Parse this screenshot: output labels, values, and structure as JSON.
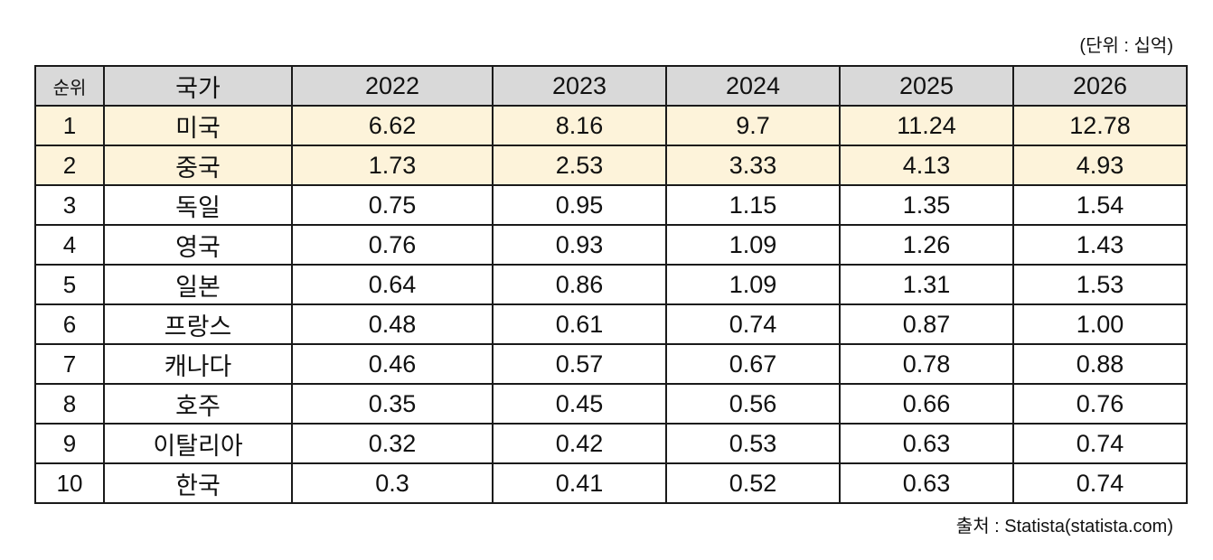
{
  "unit_note": "(단위 : 십억)",
  "source_note": "출처 : Statista(statista.com)",
  "colors": {
    "header_bg": "#d9d9d9",
    "highlight_bg": "#fdf3da",
    "border": "#1a1a1a"
  },
  "chart_data": {
    "type": "table",
    "columns": [
      "순위",
      "국가",
      "2022",
      "2023",
      "2024",
      "2025",
      "2026"
    ],
    "highlighted_ranks": [
      "1",
      "2"
    ],
    "rows": [
      {
        "rank": "1",
        "country": "미국",
        "values": [
          "6.62",
          "8.16",
          "9.7",
          "11.24",
          "12.78"
        ]
      },
      {
        "rank": "2",
        "country": "중국",
        "values": [
          "1.73",
          "2.53",
          "3.33",
          "4.13",
          "4.93"
        ]
      },
      {
        "rank": "3",
        "country": "독일",
        "values": [
          "0.75",
          "0.95",
          "1.15",
          "1.35",
          "1.54"
        ]
      },
      {
        "rank": "4",
        "country": "영국",
        "values": [
          "0.76",
          "0.93",
          "1.09",
          "1.26",
          "1.43"
        ]
      },
      {
        "rank": "5",
        "country": "일본",
        "values": [
          "0.64",
          "0.86",
          "1.09",
          "1.31",
          "1.53"
        ]
      },
      {
        "rank": "6",
        "country": "프랑스",
        "values": [
          "0.48",
          "0.61",
          "0.74",
          "0.87",
          "1.00"
        ]
      },
      {
        "rank": "7",
        "country": "캐나다",
        "values": [
          "0.46",
          "0.57",
          "0.67",
          "0.78",
          "0.88"
        ]
      },
      {
        "rank": "8",
        "country": "호주",
        "values": [
          "0.35",
          "0.45",
          "0.56",
          "0.66",
          "0.76"
        ]
      },
      {
        "rank": "9",
        "country": "이탈리아",
        "values": [
          "0.32",
          "0.42",
          "0.53",
          "0.63",
          "0.74"
        ]
      },
      {
        "rank": "10",
        "country": "한국",
        "values": [
          "0.3",
          "0.41",
          "0.52",
          "0.63",
          "0.74"
        ]
      }
    ]
  }
}
